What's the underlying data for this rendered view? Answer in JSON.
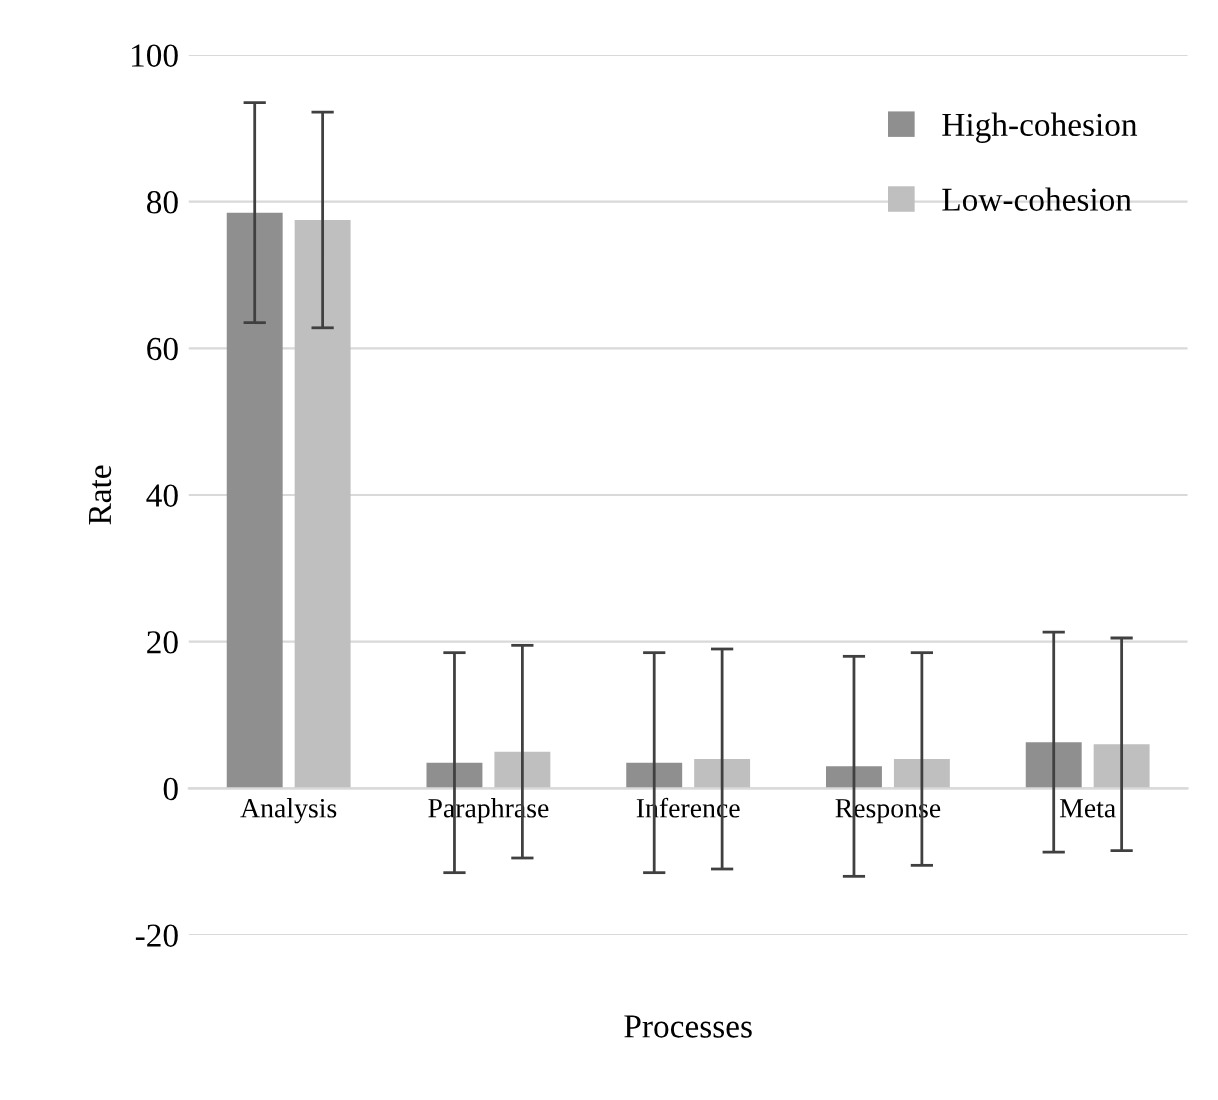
{
  "chart_data": {
    "type": "bar",
    "xlabel": "Processes",
    "ylabel": "Rate",
    "categories": [
      "Analysis",
      "Paraphrase",
      "Inference",
      "Response",
      "Meta"
    ],
    "series": [
      {
        "name": "High-cohesion",
        "color": "#8f8f8f",
        "values": [
          78.5,
          3.5,
          3.5,
          3,
          6.3
        ],
        "errors": [
          15,
          15,
          15,
          15,
          15
        ]
      },
      {
        "name": "Low-cohesion",
        "color": "#bfbfbf",
        "values": [
          77.5,
          5,
          4,
          4,
          6
        ],
        "errors": [
          14.7,
          14.5,
          15,
          14.5,
          14.5
        ]
      }
    ],
    "ylim": [
      -20,
      100
    ],
    "yticks": [
      -20,
      0,
      20,
      40,
      60,
      80,
      100
    ],
    "grid": "y",
    "legend": "top right"
  }
}
